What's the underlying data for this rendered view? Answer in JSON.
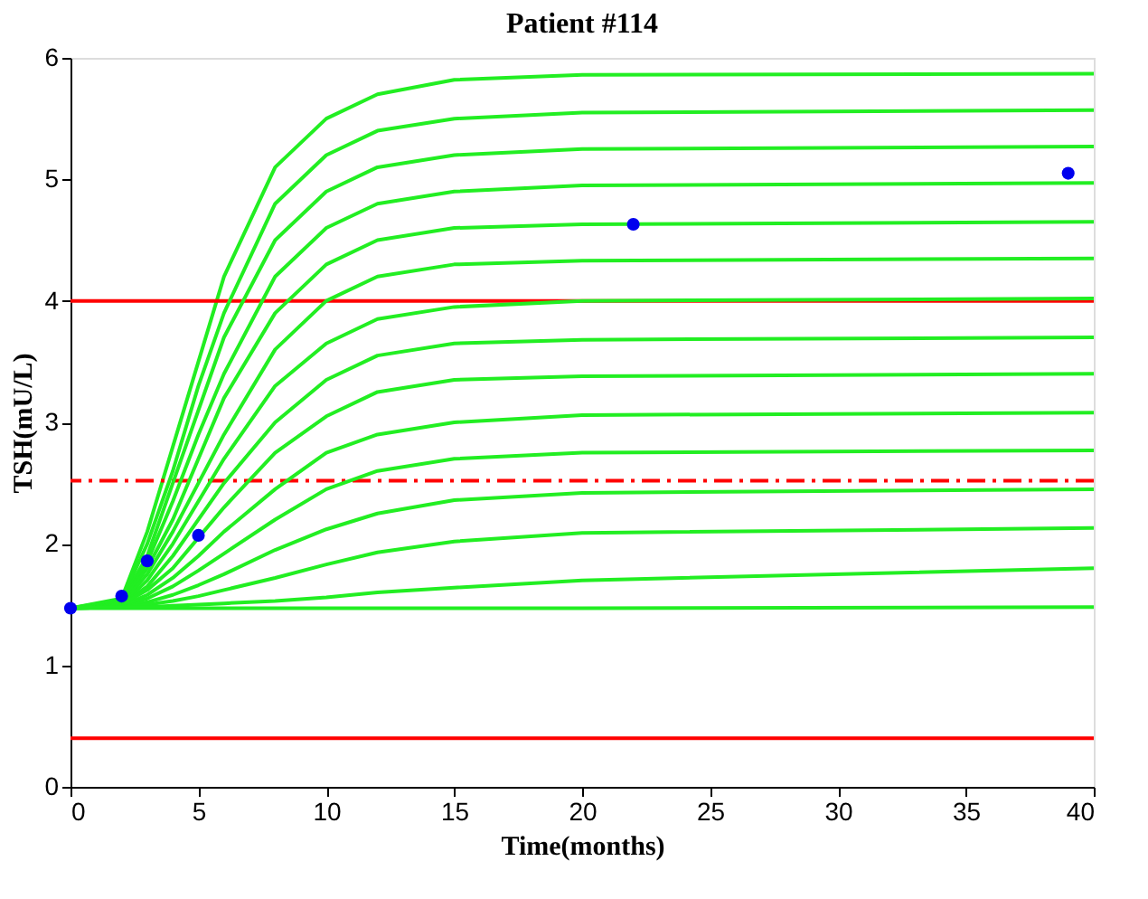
{
  "chart_data": {
    "type": "line",
    "title": "Patient #114",
    "xlabel": "Time(months)",
    "ylabel": "TSH(mU/L)",
    "x": [
      0,
      2,
      3,
      4,
      5,
      6,
      8,
      10,
      12,
      15,
      20,
      40
    ],
    "xlim": [
      0,
      40
    ],
    "xticks": [
      0,
      5,
      10,
      15,
      20,
      25,
      30,
      35,
      40
    ],
    "ylim": [
      0,
      6
    ],
    "yticks": [
      0,
      1,
      2,
      3,
      4,
      5,
      6
    ],
    "grid": false,
    "line_style": "solid",
    "marker": "none",
    "series": [
      {
        "color": "#22ee22",
        "values": [
          1.47,
          1.55,
          2.1,
          2.8,
          3.5,
          4.2,
          5.1,
          5.5,
          5.7,
          5.82,
          5.86,
          5.87
        ]
      },
      {
        "color": "#22ee22",
        "values": [
          1.47,
          1.54,
          2.0,
          2.6,
          3.3,
          3.9,
          4.8,
          5.2,
          5.4,
          5.5,
          5.55,
          5.57
        ]
      },
      {
        "color": "#22ee22",
        "values": [
          1.47,
          1.53,
          1.9,
          2.5,
          3.1,
          3.7,
          4.5,
          4.9,
          5.1,
          5.2,
          5.25,
          5.27
        ]
      },
      {
        "color": "#22ee22",
        "values": [
          1.47,
          1.52,
          1.85,
          2.35,
          2.9,
          3.4,
          4.2,
          4.6,
          4.8,
          4.9,
          4.95,
          4.97
        ]
      },
      {
        "color": "#22ee22",
        "values": [
          1.47,
          1.52,
          1.8,
          2.2,
          2.7,
          3.2,
          3.9,
          4.3,
          4.5,
          4.6,
          4.63,
          4.65
        ]
      },
      {
        "color": "#22ee22",
        "values": [
          1.47,
          1.51,
          1.75,
          2.1,
          2.5,
          2.9,
          3.6,
          4.0,
          4.2,
          4.3,
          4.33,
          4.35
        ]
      },
      {
        "color": "#22ee22",
        "values": [
          1.47,
          1.5,
          1.7,
          2.0,
          2.35,
          2.7,
          3.3,
          3.65,
          3.85,
          3.95,
          4.0,
          4.02
        ]
      },
      {
        "color": "#22ee22",
        "values": [
          1.47,
          1.5,
          1.65,
          1.9,
          2.2,
          2.5,
          3.0,
          3.35,
          3.55,
          3.65,
          3.68,
          3.7
        ]
      },
      {
        "color": "#22ee22",
        "values": [
          1.47,
          1.5,
          1.62,
          1.8,
          2.05,
          2.3,
          2.75,
          3.05,
          3.25,
          3.35,
          3.38,
          3.4
        ]
      },
      {
        "color": "#22ee22",
        "values": [
          1.47,
          1.49,
          1.58,
          1.72,
          1.9,
          2.1,
          2.45,
          2.75,
          2.9,
          3.0,
          3.06,
          3.08
        ]
      },
      {
        "color": "#22ee22",
        "values": [
          1.47,
          1.49,
          1.55,
          1.65,
          1.78,
          1.92,
          2.2,
          2.45,
          2.6,
          2.7,
          2.75,
          2.77
        ]
      },
      {
        "color": "#22ee22",
        "values": [
          1.47,
          1.48,
          1.52,
          1.58,
          1.66,
          1.75,
          1.95,
          2.12,
          2.25,
          2.36,
          2.42,
          2.45
        ]
      },
      {
        "color": "#22ee22",
        "values": [
          1.47,
          1.48,
          1.5,
          1.53,
          1.57,
          1.62,
          1.72,
          1.83,
          1.93,
          2.02,
          2.09,
          2.13
        ]
      },
      {
        "color": "#22ee22",
        "values": [
          1.47,
          1.48,
          1.48,
          1.49,
          1.5,
          1.51,
          1.53,
          1.56,
          1.6,
          1.64,
          1.7,
          1.8
        ]
      },
      {
        "color": "#22ee22",
        "values": [
          1.47,
          1.47,
          1.47,
          1.47,
          1.47,
          1.47,
          1.47,
          1.47,
          1.47,
          1.47,
          1.47,
          1.48
        ]
      },
      {
        "type": "scatter",
        "marker": "circle",
        "color": "#0000ee",
        "x": [
          0,
          2,
          3,
          5,
          22,
          39
        ],
        "values": [
          1.47,
          1.57,
          1.86,
          2.07,
          4.63,
          5.05
        ]
      }
    ],
    "ref_lines": [
      {
        "axis": "y",
        "value": 4.0,
        "color": "#ff0000",
        "line_style": "solid"
      },
      {
        "axis": "y",
        "value": 2.52,
        "color": "#ff0000",
        "line_style": "dashed"
      },
      {
        "axis": "y",
        "value": 0.4,
        "color": "#ff0000",
        "line_style": "solid"
      }
    ]
  }
}
